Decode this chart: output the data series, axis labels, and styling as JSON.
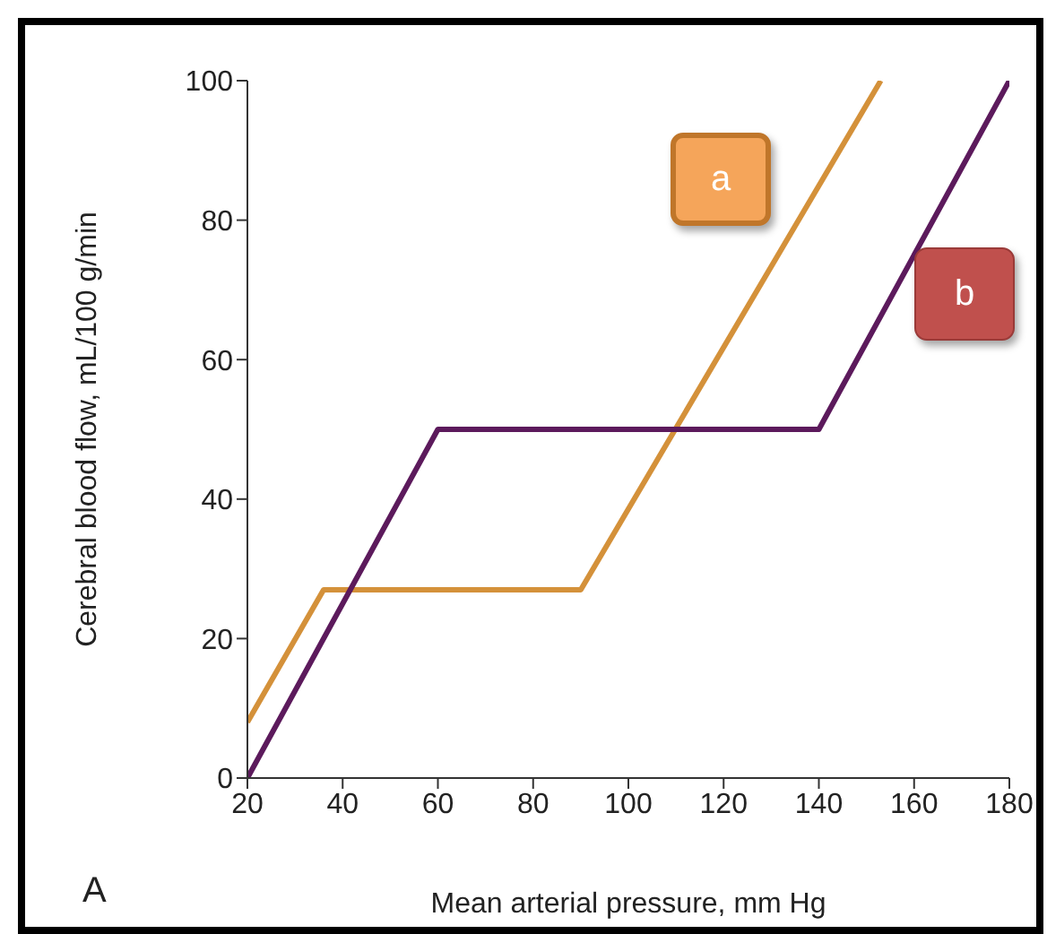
{
  "chart_data": {
    "type": "line",
    "xlabel": "Mean arterial pressure, mm Hg",
    "ylabel": "Cerebral blood flow, mL/100 g/min",
    "annotations": [
      "A"
    ],
    "xlim": [
      20,
      180
    ],
    "xticks": [
      20,
      40,
      60,
      80,
      100,
      120,
      140,
      160,
      180
    ],
    "ylim": [
      0,
      100
    ],
    "yticks": [
      0,
      20,
      40,
      60,
      80,
      100
    ],
    "grid": false,
    "legend": false,
    "marker": "none",
    "line_style": "solid",
    "series": [
      {
        "name": "a",
        "color": "#d4913a",
        "x": [
          20,
          36,
          90,
          153
        ],
        "values": [
          8,
          27,
          27,
          100
        ]
      },
      {
        "name": "b",
        "color": "#5c1a5c",
        "x": [
          20,
          60,
          140,
          180
        ],
        "values": [
          0,
          50,
          50,
          100
        ]
      }
    ]
  }
}
